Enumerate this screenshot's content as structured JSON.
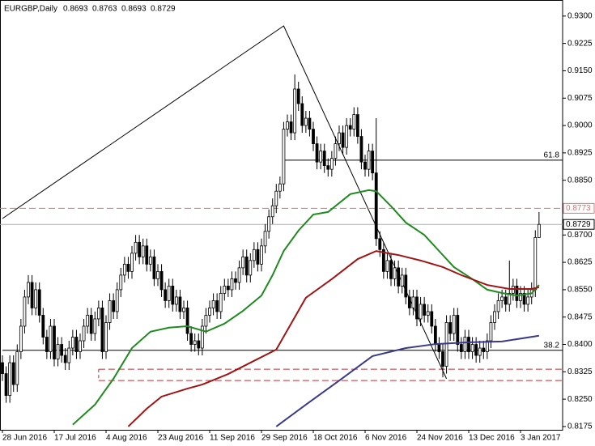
{
  "chart_data": {
    "type": "candlestick",
    "symbol": "EURGBP,Daily",
    "header_values": [
      0.8693,
      0.8763,
      0.8693,
      0.8729
    ],
    "categories": [
      "28 Jun 2016",
      null,
      null,
      null,
      null,
      null,
      null,
      null,
      null,
      null,
      null,
      null,
      null,
      null,
      "17 Jul 2016",
      null,
      null,
      null,
      null,
      null,
      null,
      null,
      null,
      null,
      null,
      null,
      null,
      null,
      "4 Aug 2016",
      null,
      null,
      null,
      null,
      null,
      null,
      null,
      null,
      null,
      null,
      null,
      null,
      null,
      "23 Aug 2016",
      null,
      null,
      null,
      null,
      null,
      null,
      null,
      null,
      null,
      null,
      null,
      null,
      null,
      "11 Sep 2016",
      null,
      null,
      null,
      null,
      null,
      null,
      null,
      null,
      null,
      null,
      null,
      null,
      null,
      "29 Sep 2016",
      null,
      null,
      null,
      null,
      null,
      null,
      null,
      null,
      null,
      null,
      null,
      null,
      null,
      "18 Oct 2016",
      null,
      null,
      null,
      null,
      null,
      null,
      null,
      null,
      null,
      null,
      null,
      null,
      null,
      "6 Nov 2016",
      null,
      null,
      null,
      null,
      null,
      null,
      null,
      null,
      null,
      null,
      null,
      null,
      null,
      "24 Nov 2016",
      null,
      null,
      null,
      null,
      null,
      null,
      null,
      null,
      null,
      null,
      null,
      null,
      null,
      "13 Dec 2016",
      null,
      null,
      null,
      null,
      null,
      null,
      null,
      null,
      null,
      null,
      null,
      null,
      null,
      "3 Jan 2017",
      null,
      null,
      null,
      null,
      null
    ],
    "open": [
      0.835,
      0.832,
      0.826,
      0.835,
      0.829,
      0.838,
      0.845,
      0.853,
      0.857,
      0.85,
      0.855,
      0.848,
      0.842,
      0.838,
      0.845,
      0.836,
      0.84,
      0.837,
      0.835,
      0.839,
      0.842,
      0.838,
      0.841,
      0.845,
      0.848,
      0.843,
      0.847,
      0.85,
      0.838,
      0.846,
      0.852,
      0.849,
      0.855,
      0.859,
      0.862,
      0.86,
      0.865,
      0.868,
      0.864,
      0.867,
      0.862,
      0.864,
      0.858,
      0.86,
      0.855,
      0.852,
      0.856,
      0.851,
      0.853,
      0.849,
      0.85,
      0.843,
      0.84,
      0.841,
      0.839,
      0.845,
      0.848,
      0.85,
      0.852,
      0.849,
      0.854,
      0.856,
      0.855,
      0.858,
      0.857,
      0.861,
      0.864,
      0.859,
      0.863,
      0.866,
      0.862,
      0.867,
      0.871,
      0.875,
      0.878,
      0.882,
      0.884,
      0.899,
      0.901,
      0.898,
      0.91,
      0.906,
      0.9,
      0.902,
      0.899,
      0.895,
      0.89,
      0.893,
      0.889,
      0.888,
      0.891,
      0.895,
      0.898,
      0.894,
      0.9,
      0.899,
      0.903,
      0.897,
      0.89,
      0.888,
      0.893,
      0.887,
      0.869,
      0.866,
      0.86,
      0.863,
      0.858,
      0.861,
      0.856,
      0.859,
      0.853,
      0.85,
      0.853,
      0.847,
      0.851,
      0.848,
      0.849,
      0.845,
      0.84,
      0.838,
      0.834,
      0.846,
      0.843,
      0.848,
      0.84,
      0.838,
      0.842,
      0.838,
      0.84,
      0.837,
      0.839,
      0.838,
      0.841,
      0.846,
      0.849,
      0.852,
      0.853,
      0.851,
      0.854,
      0.856,
      0.852,
      0.854,
      0.851,
      0.853,
      0.855,
      0.8693
    ],
    "high": [
      0.837,
      0.834,
      0.837,
      0.837,
      0.84,
      0.847,
      0.855,
      0.859,
      0.859,
      0.857,
      0.857,
      0.85,
      0.844,
      0.847,
      0.847,
      0.842,
      0.842,
      0.839,
      0.841,
      0.844,
      0.844,
      0.843,
      0.847,
      0.85,
      0.85,
      0.849,
      0.852,
      0.852,
      0.848,
      0.854,
      0.854,
      0.857,
      0.861,
      0.864,
      0.864,
      0.867,
      0.87,
      0.87,
      0.869,
      0.869,
      0.866,
      0.866,
      0.862,
      0.862,
      0.857,
      0.858,
      0.858,
      0.855,
      0.855,
      0.852,
      0.852,
      0.845,
      0.843,
      0.843,
      0.847,
      0.85,
      0.852,
      0.854,
      0.854,
      0.856,
      0.858,
      0.858,
      0.86,
      0.86,
      0.863,
      0.866,
      0.866,
      0.865,
      0.868,
      0.868,
      0.869,
      0.873,
      0.877,
      0.88,
      0.884,
      0.886,
      0.901,
      0.903,
      0.903,
      0.914,
      0.912,
      0.908,
      0.904,
      0.904,
      0.901,
      0.897,
      0.895,
      0.895,
      0.891,
      0.893,
      0.897,
      0.9,
      0.9,
      0.902,
      0.902,
      0.905,
      0.905,
      0.899,
      0.892,
      0.895,
      0.895,
      0.902,
      0.871,
      0.868,
      0.865,
      0.865,
      0.863,
      0.863,
      0.861,
      0.861,
      0.855,
      0.855,
      0.855,
      0.853,
      0.853,
      0.851,
      0.851,
      0.847,
      0.842,
      0.84,
      0.848,
      0.848,
      0.85,
      0.85,
      0.842,
      0.844,
      0.844,
      0.842,
      0.842,
      0.841,
      0.841,
      0.843,
      0.848,
      0.851,
      0.854,
      0.855,
      0.855,
      0.863,
      0.858,
      0.858,
      0.856,
      0.856,
      0.855,
      0.857,
      0.8713,
      0.8763
    ],
    "low": [
      0.83,
      0.824,
      0.824,
      0.827,
      0.827,
      0.836,
      0.843,
      0.851,
      0.848,
      0.848,
      0.846,
      0.84,
      0.836,
      0.836,
      0.834,
      0.834,
      0.835,
      0.833,
      0.833,
      0.837,
      0.836,
      0.836,
      0.839,
      0.843,
      0.841,
      0.841,
      0.845,
      0.836,
      0.836,
      0.844,
      0.847,
      0.847,
      0.853,
      0.857,
      0.858,
      0.858,
      0.863,
      0.862,
      0.862,
      0.86,
      0.86,
      0.856,
      0.856,
      0.853,
      0.85,
      0.85,
      0.849,
      0.849,
      0.847,
      0.847,
      0.841,
      0.838,
      0.838,
      0.837,
      0.837,
      0.843,
      0.846,
      0.848,
      0.847,
      0.847,
      0.852,
      0.853,
      0.853,
      0.855,
      0.855,
      0.859,
      0.857,
      0.857,
      0.861,
      0.86,
      0.86,
      0.865,
      0.869,
      0.873,
      0.876,
      0.88,
      0.882,
      0.897,
      0.896,
      0.896,
      0.904,
      0.898,
      0.898,
      0.897,
      0.893,
      0.888,
      0.888,
      0.887,
      0.886,
      0.886,
      0.889,
      0.893,
      0.892,
      0.892,
      0.897,
      0.897,
      0.895,
      0.888,
      0.886,
      0.886,
      0.885,
      0.867,
      0.864,
      0.858,
      0.858,
      0.856,
      0.856,
      0.854,
      0.854,
      0.851,
      0.848,
      0.848,
      0.845,
      0.845,
      0.846,
      0.846,
      0.843,
      0.838,
      0.836,
      0.831,
      0.832,
      0.841,
      0.841,
      0.838,
      0.836,
      0.836,
      0.836,
      0.836,
      0.835,
      0.835,
      0.836,
      0.836,
      0.839,
      0.844,
      0.847,
      0.85,
      0.849,
      0.849,
      0.852,
      0.85,
      0.85,
      0.849,
      0.849,
      0.851,
      0.853,
      0.8693
    ],
    "close": [
      0.832,
      0.826,
      0.835,
      0.829,
      0.838,
      0.845,
      0.853,
      0.857,
      0.85,
      0.855,
      0.848,
      0.842,
      0.838,
      0.845,
      0.836,
      0.84,
      0.837,
      0.835,
      0.839,
      0.842,
      0.838,
      0.841,
      0.845,
      0.848,
      0.843,
      0.847,
      0.85,
      0.838,
      0.846,
      0.852,
      0.849,
      0.855,
      0.859,
      0.862,
      0.86,
      0.865,
      0.868,
      0.864,
      0.867,
      0.862,
      0.864,
      0.858,
      0.86,
      0.855,
      0.852,
      0.856,
      0.851,
      0.853,
      0.849,
      0.85,
      0.843,
      0.84,
      0.841,
      0.839,
      0.845,
      0.848,
      0.85,
      0.852,
      0.849,
      0.854,
      0.856,
      0.855,
      0.858,
      0.857,
      0.861,
      0.864,
      0.859,
      0.863,
      0.866,
      0.862,
      0.867,
      0.871,
      0.875,
      0.878,
      0.882,
      0.884,
      0.899,
      0.901,
      0.898,
      0.91,
      0.906,
      0.9,
      0.902,
      0.899,
      0.895,
      0.89,
      0.893,
      0.889,
      0.888,
      0.891,
      0.895,
      0.898,
      0.894,
      0.9,
      0.899,
      0.903,
      0.897,
      0.89,
      0.888,
      0.893,
      0.887,
      0.869,
      0.866,
      0.86,
      0.863,
      0.858,
      0.861,
      0.856,
      0.859,
      0.853,
      0.85,
      0.853,
      0.847,
      0.851,
      0.848,
      0.849,
      0.845,
      0.84,
      0.838,
      0.834,
      0.846,
      0.843,
      0.848,
      0.84,
      0.838,
      0.842,
      0.838,
      0.84,
      0.837,
      0.839,
      0.838,
      0.841,
      0.846,
      0.849,
      0.852,
      0.853,
      0.851,
      0.854,
      0.856,
      0.852,
      0.854,
      0.851,
      0.853,
      0.855,
      0.8693,
      0.8729
    ],
    "ylim": [
      0.8166,
      0.9344
    ],
    "yticks": [
      {
        "value": 0.93,
        "label": "0.9300"
      },
      {
        "value": 0.9225,
        "label": "0.9225"
      },
      {
        "value": 0.915,
        "label": "0.9150"
      },
      {
        "value": 0.9075,
        "label": "0.9075"
      },
      {
        "value": 0.9,
        "label": "0.9000"
      },
      {
        "value": 0.8925,
        "label": "0.8925"
      },
      {
        "value": 0.885,
        "label": "0.8850"
      },
      {
        "value": 0.8775,
        "label": "0.8775"
      },
      {
        "value": 0.87,
        "label": "0.8700"
      },
      {
        "value": 0.8625,
        "label": "0.8625"
      },
      {
        "value": 0.855,
        "label": "0.8550"
      },
      {
        "value": 0.8475,
        "label": "0.8475"
      },
      {
        "value": 0.84,
        "label": "0.8400"
      },
      {
        "value": 0.8325,
        "label": "0.8325"
      },
      {
        "value": 0.825,
        "label": "0.8250"
      },
      {
        "value": 0.8175,
        "label": "0.8175"
      }
    ],
    "moving_averages": [
      {
        "color": "#1f8a1f",
        "x": [
          19,
          25,
          30,
          35,
          40,
          45,
          50,
          55,
          60,
          65,
          70,
          73,
          76,
          80,
          84,
          88,
          94,
          99,
          101,
          105,
          109,
          114,
          118,
          122,
          127,
          131,
          135,
          139,
          143,
          145
        ],
        "values": [
          0.818,
          0.8235,
          0.8306,
          0.839,
          0.8435,
          0.8446,
          0.845,
          0.8435,
          0.8457,
          0.8492,
          0.8534,
          0.859,
          0.8656,
          0.8712,
          0.8756,
          0.8763,
          0.8812,
          0.8823,
          0.882,
          0.8779,
          0.8734,
          0.87,
          0.8656,
          0.8612,
          0.8579,
          0.855,
          0.8541,
          0.8534,
          0.854,
          0.8563
        ]
      },
      {
        "color": "#a01414",
        "x": [
          34,
          39,
          43,
          50,
          54,
          61,
          67,
          74,
          78,
          82,
          89,
          96,
          101,
          107,
          113,
          119,
          124,
          131,
          137,
          143,
          145
        ],
        "values": [
          0.8175,
          0.8224,
          0.8257,
          0.8279,
          0.829,
          0.8319,
          0.835,
          0.8386,
          0.8457,
          0.8528,
          0.8579,
          0.8634,
          0.8656,
          0.8645,
          0.863,
          0.8612,
          0.859,
          0.8563,
          0.8552,
          0.8552,
          0.8557
        ]
      },
      {
        "color": "#3a3a8c",
        "x": [
          74,
          82,
          91,
          100,
          109,
          117,
          126,
          135,
          145
        ],
        "values": [
          0.8175,
          0.8235,
          0.8301,
          0.8368,
          0.839,
          0.8401,
          0.8406,
          0.8408,
          0.8424
        ]
      }
    ],
    "trendline": {
      "x": [
        0,
        76,
        120
      ],
      "values": [
        0.8745,
        0.9273,
        0.8306
      ]
    },
    "fib_levels": [
      {
        "label": "61.8",
        "price": 0.8905,
        "start": 76
      },
      {
        "label": "38.2",
        "price": 0.8384,
        "start": 0
      }
    ],
    "zone": {
      "start": 26,
      "prices": [
        0.8332,
        0.8301
      ]
    },
    "alert_price": 0.8773,
    "bid": 0.8729
  }
}
